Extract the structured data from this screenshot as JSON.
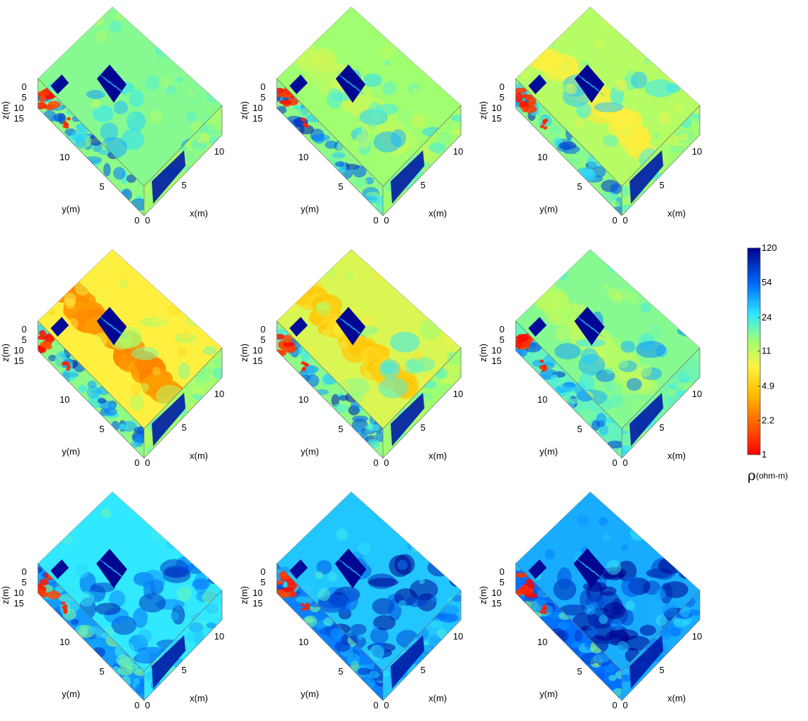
{
  "chart_data": {
    "type": "heatmap",
    "title": "",
    "panels_grid": {
      "rows": 3,
      "cols": 3
    },
    "panels": [
      {
        "top_tone": 0.58,
        "front_tone": 0.45,
        "side_tone": 0.55,
        "low_band": 0,
        "high_spread": 0.05
      },
      {
        "top_tone": 0.55,
        "front_tone": 0.45,
        "side_tone": 0.55,
        "low_band": 0.1,
        "high_spread": 0.08
      },
      {
        "top_tone": 0.52,
        "front_tone": 0.45,
        "side_tone": 0.55,
        "low_band": 0.35,
        "high_spread": 0.1
      },
      {
        "top_tone": 0.42,
        "front_tone": 0.45,
        "side_tone": 0.55,
        "low_band": 0.9,
        "high_spread": 0.1
      },
      {
        "top_tone": 0.47,
        "front_tone": 0.45,
        "side_tone": 0.55,
        "low_band": 0.55,
        "high_spread": 0.12
      },
      {
        "top_tone": 0.58,
        "front_tone": 0.5,
        "side_tone": 0.6,
        "low_band": 0.2,
        "high_spread": 0.22
      },
      {
        "top_tone": 0.68,
        "front_tone": 0.65,
        "side_tone": 0.68,
        "low_band": 0,
        "high_spread": 0.4
      },
      {
        "top_tone": 0.72,
        "front_tone": 0.68,
        "side_tone": 0.72,
        "low_band": 0,
        "high_spread": 0.55
      },
      {
        "top_tone": 0.75,
        "front_tone": 0.7,
        "side_tone": 0.75,
        "low_band": 0,
        "high_spread": 0.7
      }
    ],
    "axes": {
      "x": {
        "label": "x(m)",
        "ticks": [
          "0",
          "5",
          "10"
        ]
      },
      "y": {
        "label": "y(m)",
        "ticks": [
          "0",
          "5",
          "10"
        ]
      },
      "z": {
        "label": "z(m)",
        "ticks": [
          "0",
          "5",
          "10",
          "15"
        ]
      }
    },
    "colorbar": {
      "scale": "log",
      "ticks": [
        "120",
        "54",
        "24",
        "11",
        "4.9",
        "2.2",
        "1"
      ],
      "unit_symbol": "ρ",
      "unit_text": "(ohm-m)",
      "range": [
        1,
        120
      ]
    },
    "colormap": "jet"
  }
}
